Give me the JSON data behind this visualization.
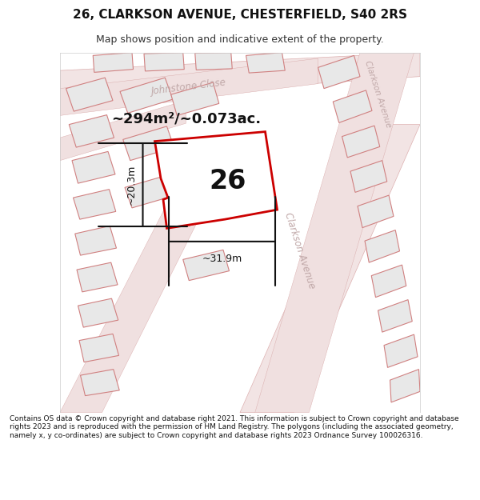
{
  "title": "26, CLARKSON AVENUE, CHESTERFIELD, S40 2RS",
  "subtitle": "Map shows position and indicative extent of the property.",
  "footer": "Contains OS data © Crown copyright and database right 2021. This information is subject to Crown copyright and database rights 2023 and is reproduced with the permission of HM Land Registry. The polygons (including the associated geometry, namely x, y co-ordinates) are subject to Crown copyright and database rights 2023 Ordnance Survey 100026316.",
  "area_label": "~294m²/~0.073ac.",
  "width_label": "~31.9m",
  "height_label": "~20.3m",
  "number_label": "26",
  "bg_color": "#ffffff",
  "road_fill": "#f5e8e8",
  "road_edge": "#e8b8b8",
  "bld_fill": "#e8e8e8",
  "bld_edge": "#d08080",
  "plot_edge": "#cc0000",
  "plot_fill": "#ffffff",
  "street_color": "#c0a8a8",
  "dim_color": "#111111",
  "title_fs": 11,
  "subtitle_fs": 9,
  "footer_fs": 6.5
}
